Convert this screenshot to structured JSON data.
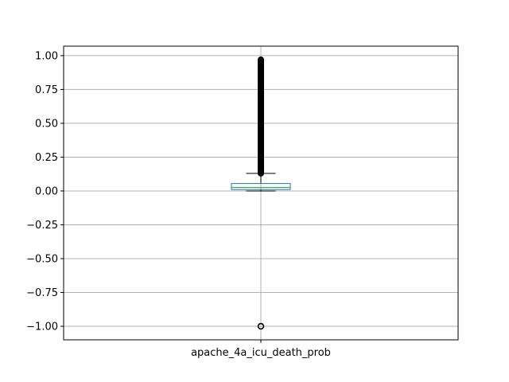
{
  "chart_data": {
    "type": "box",
    "title": "",
    "xlabel": "",
    "ylabel": "",
    "categories": [
      "apache_4a_icu_death_prob"
    ],
    "ylim": [
      -1.1,
      1.07
    ],
    "yticks": [
      1.0,
      0.75,
      0.5,
      0.25,
      0.0,
      -0.25,
      -0.5,
      -0.75,
      -1.0
    ],
    "ytick_labels": [
      "1.00",
      "0.75",
      "0.50",
      "0.25",
      "0.00",
      "−0.25",
      "−0.50",
      "−0.75",
      "−1.00"
    ],
    "grid": true,
    "box": {
      "whisker_low": 0.0,
      "q1": 0.01,
      "median": 0.025,
      "q3": 0.055,
      "whisker_high": 0.13
    },
    "outliers_high_range": [
      0.13,
      0.97
    ],
    "outliers_low": [
      -1.0
    ],
    "colors": {
      "box": "#1f77b4",
      "median": "#2ca02c",
      "whisker": "#000000",
      "grid": "#b0b0b0"
    }
  }
}
